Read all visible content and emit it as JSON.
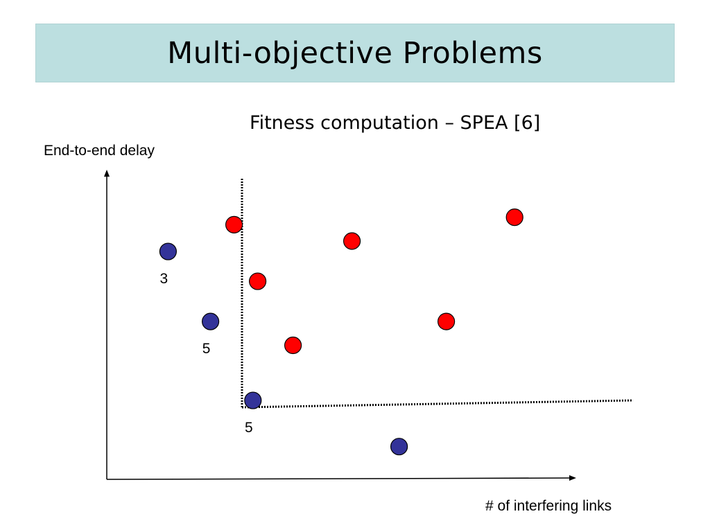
{
  "slide": {
    "title": "Multi-objective Problems",
    "subtitle": "Fitness computation – SPEA [6]"
  },
  "axes": {
    "y_label": "End-to-end delay",
    "x_label": "# of interfering links"
  },
  "colors": {
    "title_bg": "#bcdfe0",
    "dominated_point": "#ff0000",
    "nondominated_point": "#333399"
  },
  "points": {
    "nondominated": [
      {
        "x": 1.3,
        "y": 7.65,
        "label": "3"
      },
      {
        "x": 2.2,
        "y": 5.3,
        "label": "5"
      },
      {
        "x": 3.1,
        "y": 2.65,
        "label": "5"
      },
      {
        "x": 6.2,
        "y": 1.1,
        "label": ""
      }
    ],
    "dominated": [
      {
        "x": 2.7,
        "y": 8.55
      },
      {
        "x": 3.2,
        "y": 6.65
      },
      {
        "x": 3.95,
        "y": 4.5
      },
      {
        "x": 5.2,
        "y": 8.0
      },
      {
        "x": 7.2,
        "y": 5.3
      },
      {
        "x": 8.65,
        "y": 8.8
      }
    ]
  }
}
